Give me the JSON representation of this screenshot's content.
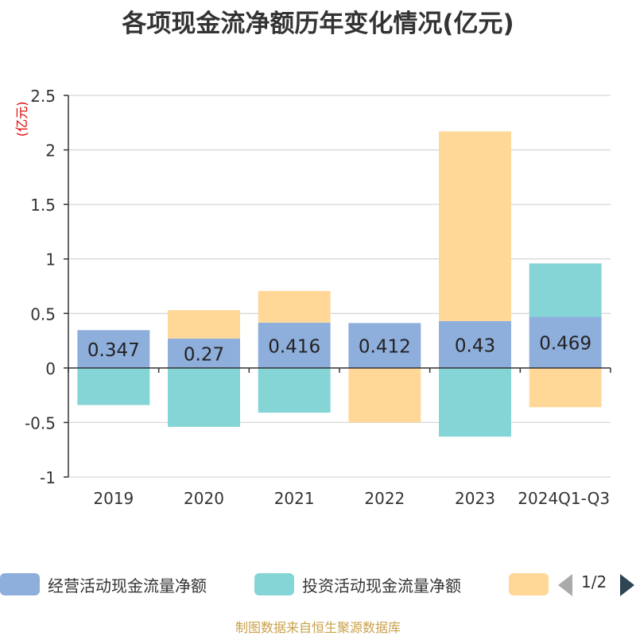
{
  "chart_data": {
    "type": "bar",
    "stacked": true,
    "title": "各项现金流净额历年变化情况(亿元)",
    "unit_label": "(亿元)",
    "categories": [
      "2019",
      "2020",
      "2021",
      "2022",
      "2023",
      "2024Q1-Q3"
    ],
    "ylim": [
      -1,
      2.5
    ],
    "yticks": [
      2.5,
      2,
      1.5,
      1,
      0.5,
      0,
      -0.5,
      -1
    ],
    "ytick_labels": [
      "2.5",
      "2",
      "1.5",
      "1",
      "0.5",
      "0",
      "-0.5",
      "-1"
    ],
    "grid": true,
    "series": [
      {
        "name": "经营活动现金流量净额",
        "color": "#8eaedc",
        "values": [
          0.347,
          0.27,
          0.416,
          0.412,
          0.43,
          0.469
        ],
        "data_labels": [
          "0.347",
          "0.27",
          "0.416",
          "0.412",
          "0.43",
          "0.469"
        ]
      },
      {
        "name": "投资活动现金流量净额",
        "color": "#85d5d6",
        "values": [
          -0.34,
          -0.54,
          -0.41,
          0.0,
          -0.63,
          0.49
        ]
      },
      {
        "name": "",
        "color": "#ffd898",
        "values": [
          0.0,
          0.26,
          0.29,
          -0.5,
          1.74,
          -0.36
        ]
      }
    ]
  },
  "legend": {
    "pager": "1/2",
    "pager_prev_icon": "triangle-left-icon",
    "pager_next_icon": "triangle-right-icon"
  },
  "footer": "制图数据来自恒生聚源数据库"
}
